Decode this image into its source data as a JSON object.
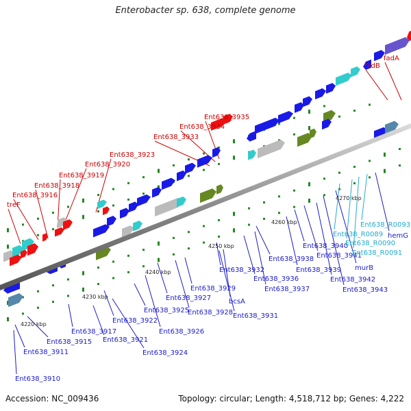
{
  "title": "Enterobacter sp. 638, complete genome",
  "footer": {
    "accession": "Accession: NC_009436",
    "stats": "Topology: circular; Length: 4,518,712 bp; Genes: 4,222"
  },
  "colors": {
    "backbone": "#888888",
    "tick": "#228822",
    "label_red": "#cc0000",
    "label_blue": "#1a1acc",
    "label_cyan": "#22aacc",
    "feature_blue": "#1a1ae6",
    "feature_red": "#ee1111",
    "feature_cyan": "#33cccc",
    "feature_gray": "#bbbbbb",
    "feature_olive": "#668822",
    "feature_purple": "#6655cc",
    "feature_slate": "#5588aa"
  },
  "scale_labels": [
    "4220 kbp",
    "4230 kbp",
    "4240 kbp",
    "4250 kbp",
    "4260 kbp",
    "4270 kbp"
  ],
  "labels_top": [
    "treF",
    "Ent638_3916",
    "Ent638_3918",
    "Ent638_3919",
    "Ent638_3920",
    "Ent638_3923",
    "Ent638_3933",
    "Ent638_3934",
    "Ent638_3935",
    "fadB",
    "fadA"
  ],
  "labels_bottom": [
    "Ent638_3910",
    "Ent638_3911",
    "Ent638_3915",
    "Ent638_3917",
    "Ent638_3921",
    "Ent638_3922",
    "Ent638_3924",
    "Ent638_3925",
    "Ent638_3926",
    "Ent638_3927",
    "Ent638_3928",
    "Ent638_3929",
    "Ent638_3931",
    "bcsA",
    "Ent638_3932",
    "Ent638_3936",
    "Ent638_3937",
    "Ent638_3938",
    "Ent638_3939",
    "Ent638_3940",
    "Ent638_3941",
    "Ent638_3942",
    "Ent638_3943",
    "murB",
    "hemG"
  ],
  "labels_rna": [
    "Ent638_R0089",
    "Ent638_R0090",
    "Ent638_R0091",
    "Ent638_R0093"
  ]
}
